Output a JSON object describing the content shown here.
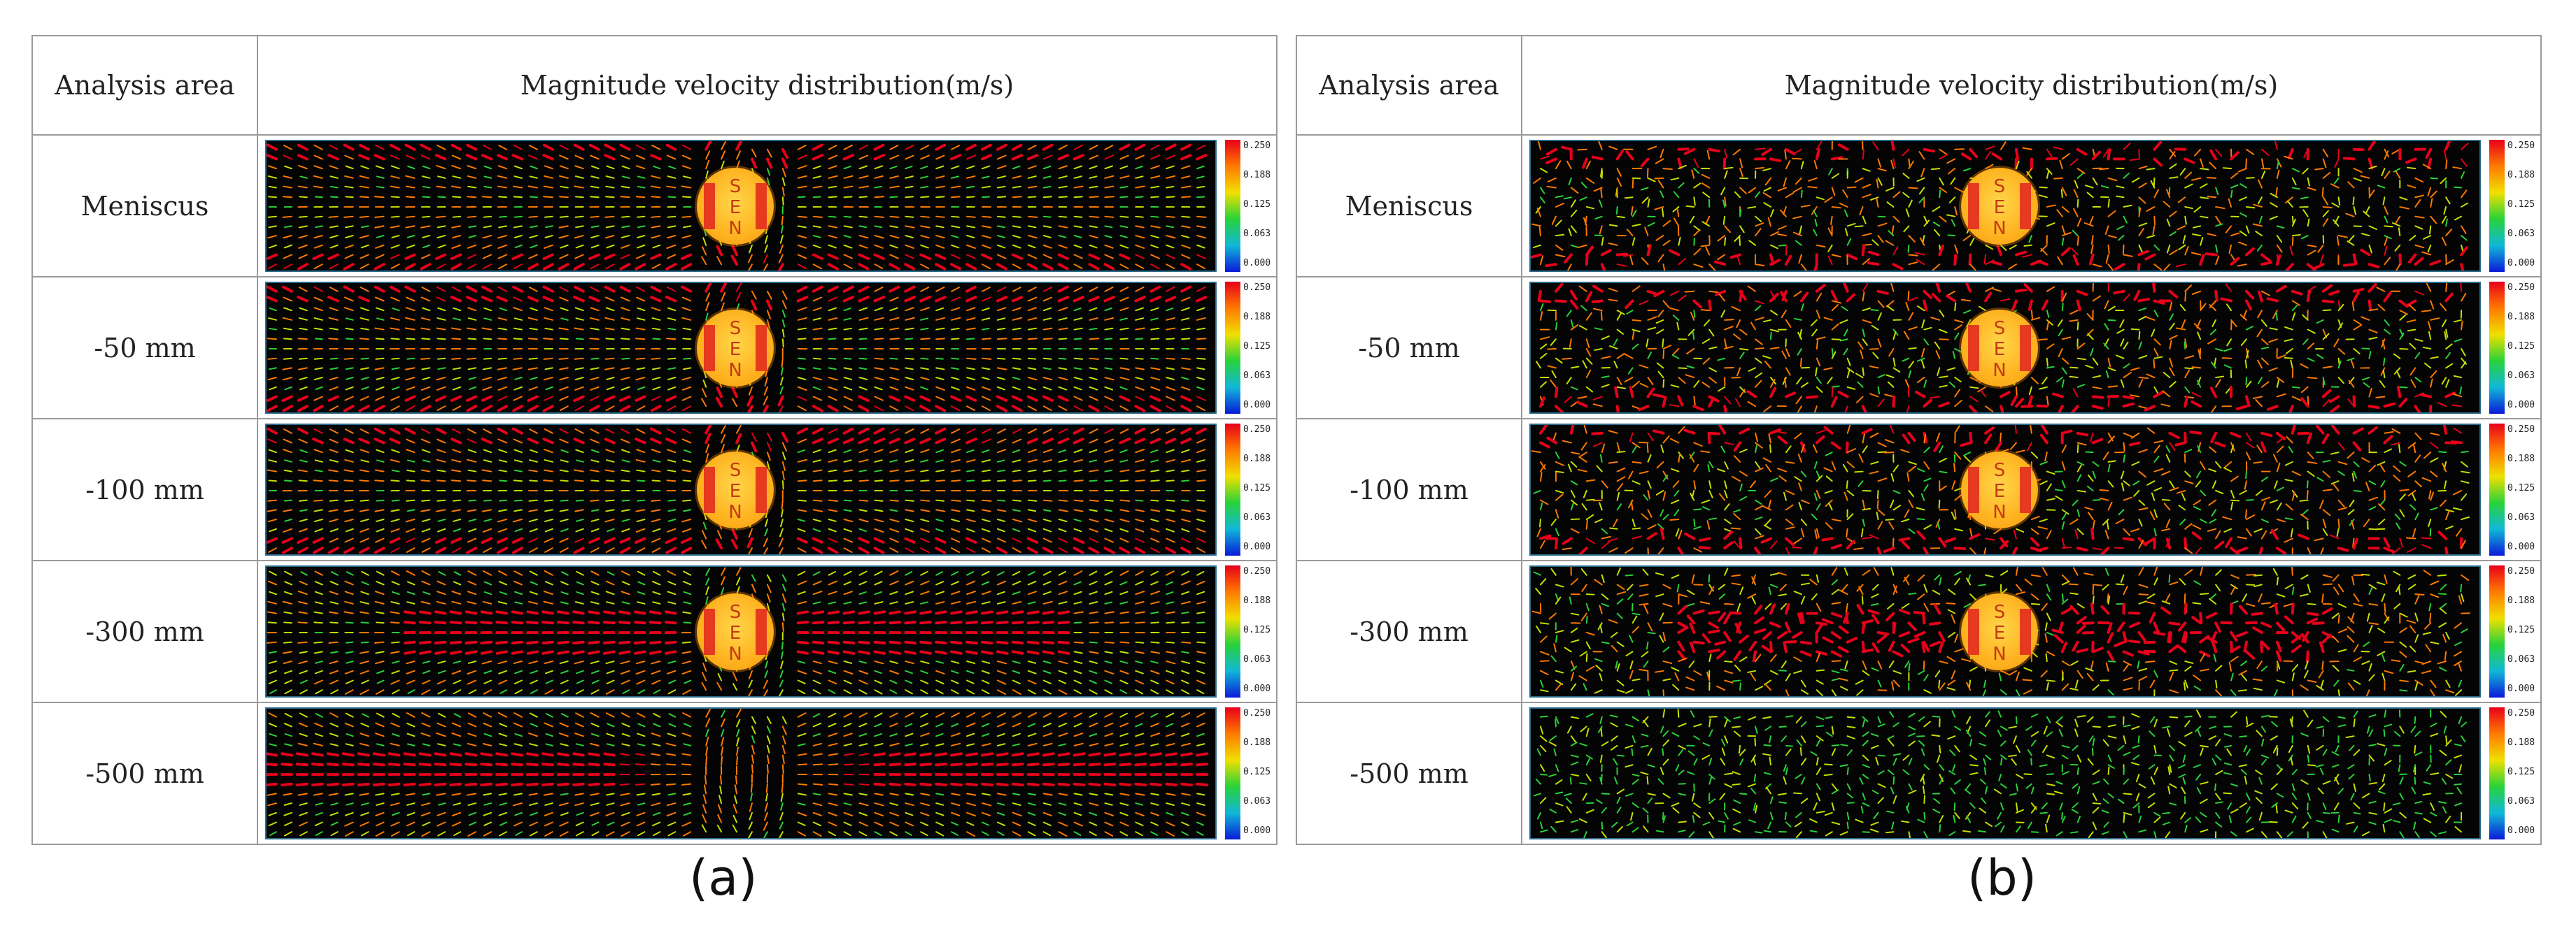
{
  "figure": {
    "panels": [
      {
        "id": "a",
        "caption": "(a)",
        "header": {
          "col1": "Analysis area",
          "col2": "Magnitude velocity distribution(m/s)"
        },
        "rows": [
          {
            "label": "Meniscus"
          },
          {
            "label": "-50 mm"
          },
          {
            "label": "-100 mm"
          },
          {
            "label": "-300 mm"
          },
          {
            "label": "-500 mm"
          }
        ]
      },
      {
        "id": "b",
        "caption": "(b)",
        "header": {
          "col1": "Analysis area",
          "col2": "Magnitude velocity distribution(m/s)"
        },
        "rows": [
          {
            "label": "Meniscus"
          },
          {
            "label": "-50 mm"
          },
          {
            "label": "-100 mm"
          },
          {
            "label": "-300 mm"
          },
          {
            "label": "-500 mm"
          }
        ]
      }
    ],
    "legend": {
      "ticks": [
        "0.250",
        "0.188",
        "0.125",
        "0.063",
        "0.000"
      ],
      "colors": [
        "#e8001a",
        "#ff7a00",
        "#f0e000",
        "#29d23a",
        "#10b8d8",
        "#0a1ad8"
      ]
    },
    "sen": {
      "letters": [
        "S",
        "E",
        "N"
      ]
    }
  }
}
